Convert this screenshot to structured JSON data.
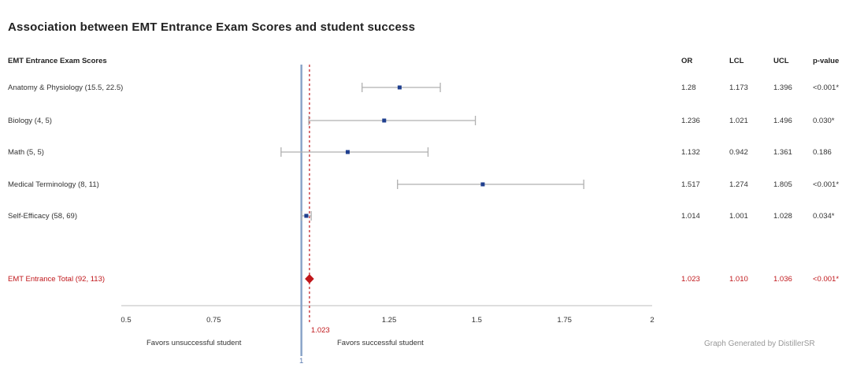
{
  "title": "Association between EMT Entrance Exam Scores and student success",
  "chart_data": {
    "type": "forest",
    "row_header": "EMT Entrance Exam Scores",
    "columns": [
      "OR",
      "LCL",
      "UCL",
      "p-value"
    ],
    "rows": [
      {
        "label": "Anatomy & Physiology (15.5, 22.5)",
        "or": 1.28,
        "lcl": 1.173,
        "ucl": 1.396,
        "or_text": "1.28",
        "lcl_text": "1.173",
        "ucl_text": "1.396",
        "p_text": "<0.001*"
      },
      {
        "label": "Biology (4, 5)",
        "or": 1.236,
        "lcl": 1.021,
        "ucl": 1.496,
        "or_text": "1.236",
        "lcl_text": "1.021",
        "ucl_text": "1.496",
        "p_text": "0.030*"
      },
      {
        "label": "Math (5, 5)",
        "or": 1.132,
        "lcl": 0.942,
        "ucl": 1.361,
        "or_text": "1.132",
        "lcl_text": "0.942",
        "ucl_text": "1.361",
        "p_text": "0.186"
      },
      {
        "label": "Medical Terminology (8, 11)",
        "or": 1.517,
        "lcl": 1.274,
        "ucl": 1.805,
        "or_text": "1.517",
        "lcl_text": "1.274",
        "ucl_text": "1.805",
        "p_text": "<0.001*"
      },
      {
        "label": "Self-Efficacy (58, 69)",
        "or": 1.014,
        "lcl": 1.001,
        "ucl": 1.028,
        "or_text": "1.014",
        "lcl_text": "1.001",
        "ucl_text": "1.028",
        "p_text": "0.034*"
      }
    ],
    "total": {
      "label": "EMT Entrance Total (92, 113)",
      "or": 1.023,
      "lcl": 1.01,
      "ucl": 1.036,
      "or_text": "1.023",
      "lcl_text": "1.010",
      "ucl_text": "1.036",
      "p_text": "<0.001*"
    },
    "x_ticks": [
      0.5,
      0.75,
      1.25,
      1.5,
      1.75,
      2
    ],
    "x_tick_labels": [
      "0.5",
      "0.75",
      "1.25",
      "1.5",
      "1.75",
      "2"
    ],
    "xlim": [
      0.5,
      2
    ],
    "null_line": 1,
    "null_line_label": "1",
    "pooled_line": 1.023,
    "pooled_line_label": "1.023",
    "favors_left": "Favors unsuccessful student",
    "favors_right": "Favors successful student",
    "credit": "Graph Generated by DistillerSR",
    "colors": {
      "point": "#1f3f8f",
      "ci": "#b0b0b0",
      "null_line": "#8aa4c8",
      "pooled": "#c0171b",
      "axis": "#bdbdbd"
    }
  }
}
